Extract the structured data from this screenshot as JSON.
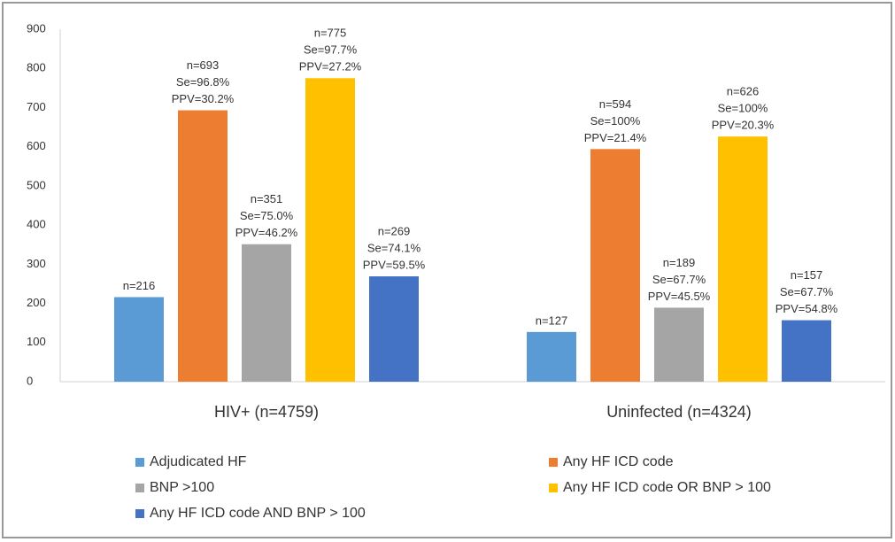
{
  "chart_data": {
    "type": "bar",
    "categories": [
      "HIV+ (n=4759)",
      "Uninfected (n=4324)"
    ],
    "series": [
      {
        "name": "Adjudicated HF",
        "color": "#5b9bd5",
        "values": [
          216,
          127
        ],
        "value_labels": [
          "n=216",
          "n=127"
        ],
        "se_labels": [
          null,
          null
        ],
        "ppv_labels": [
          null,
          null
        ]
      },
      {
        "name": "Any HF ICD code",
        "color": "#ed7d31",
        "values": [
          693,
          594
        ],
        "value_labels": [
          "n=693",
          "n=594"
        ],
        "se_labels": [
          "Se=96.8%",
          "Se=100%"
        ],
        "ppv_labels": [
          "PPV=30.2%",
          "PPV=21.4%"
        ]
      },
      {
        "name": "BNP >100",
        "color": "#a5a5a5",
        "values": [
          351,
          189
        ],
        "value_labels": [
          "n=351",
          "n=189"
        ],
        "se_labels": [
          "Se=75.0%",
          "Se=67.7%"
        ],
        "ppv_labels": [
          "PPV=46.2%",
          "PPV=45.5%"
        ]
      },
      {
        "name": "Any HF ICD code OR BNP > 100",
        "color": "#ffc000",
        "values": [
          775,
          626
        ],
        "value_labels": [
          "n=775",
          "n=626"
        ],
        "se_labels": [
          "Se=97.7%",
          "Se=100%"
        ],
        "ppv_labels": [
          "PPV=27.2%",
          "PPV=20.3%"
        ]
      },
      {
        "name": "Any HF ICD code AND BNP > 100",
        "color": "#4472c4",
        "values": [
          269,
          157
        ],
        "value_labels": [
          "n=269",
          "n=157"
        ],
        "se_labels": [
          "Se=74.1%",
          "Se=67.7%"
        ],
        "ppv_labels": [
          "PPV=59.5%",
          "PPV=54.8%"
        ]
      }
    ],
    "ylim": [
      0,
      900
    ],
    "yticks": [
      0,
      100,
      200,
      300,
      400,
      500,
      600,
      700,
      800,
      900
    ],
    "grid": false
  }
}
